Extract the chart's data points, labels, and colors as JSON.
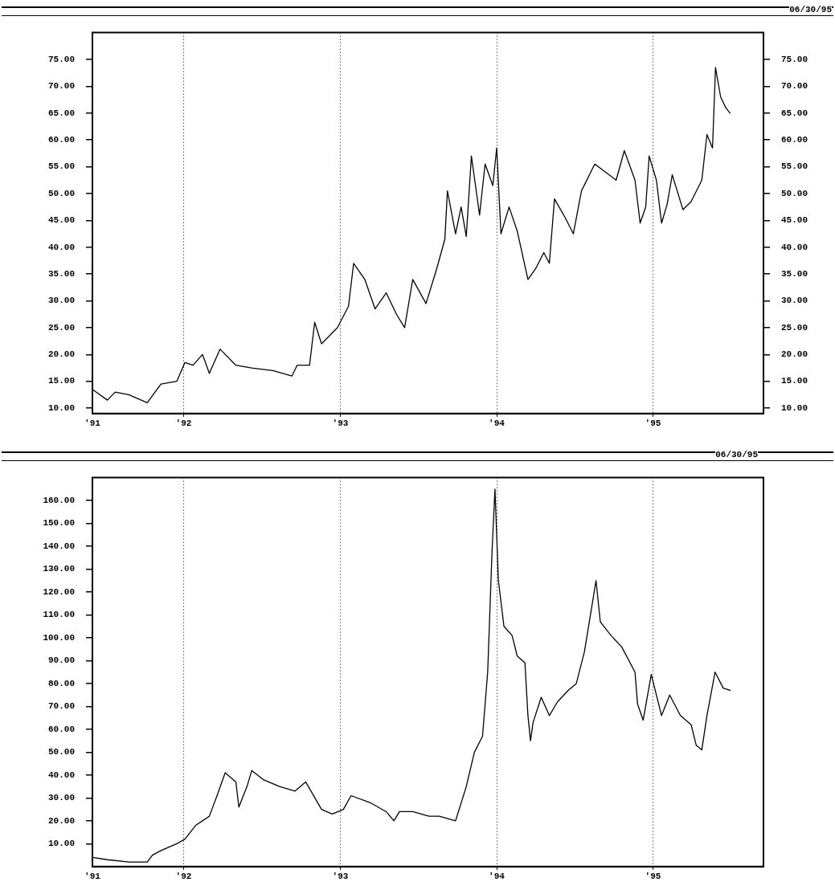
{
  "chart_data": [
    {
      "type": "line",
      "subtitle": "06/30/95",
      "xlim": [
        "1991-06-02",
        "1995-09-16"
      ],
      "ylim": [
        9,
        80
      ],
      "xticks": [
        {
          "value": "1991-06-02",
          "label": "'91"
        },
        {
          "value": "1992-01-01",
          "label": "'92"
        },
        {
          "value": "1993-01-01",
          "label": "'93"
        },
        {
          "value": "1994-01-01",
          "label": "'94"
        },
        {
          "value": "1995-01-01",
          "label": "'95"
        }
      ],
      "yticks": [
        {
          "value": 10,
          "label": "10.00"
        },
        {
          "value": 15,
          "label": "15.00"
        },
        {
          "value": 20,
          "label": "20.00"
        },
        {
          "value": 25,
          "label": "25.00"
        },
        {
          "value": 30,
          "label": "30.00"
        },
        {
          "value": 35,
          "label": "35.00"
        },
        {
          "value": 40,
          "label": "40.00"
        },
        {
          "value": 45,
          "label": "45.00"
        },
        {
          "value": 50,
          "label": "50.00"
        },
        {
          "value": 55,
          "label": "55.00"
        },
        {
          "value": 60,
          "label": "60.00"
        },
        {
          "value": 65,
          "label": "65.00"
        },
        {
          "value": 70,
          "label": "70.00"
        },
        {
          "value": 75,
          "label": "75.00"
        }
      ],
      "y2lim": [
        9,
        80
      ],
      "y2ticks": [
        {
          "value": 10,
          "label": "10.00"
        },
        {
          "value": 15,
          "label": "15.00"
        },
        {
          "value": 20,
          "label": "20.00"
        },
        {
          "value": 25,
          "label": "25.00"
        },
        {
          "value": 30,
          "label": "30.00"
        },
        {
          "value": 35,
          "label": "35.00"
        },
        {
          "value": 40,
          "label": "40.00"
        },
        {
          "value": 45,
          "label": "45.00"
        },
        {
          "value": 50,
          "label": "50.00"
        },
        {
          "value": 55,
          "label": "55.00"
        },
        {
          "value": 60,
          "label": "60.00"
        },
        {
          "value": 65,
          "label": "65.00"
        },
        {
          "value": 70,
          "label": "70.00"
        },
        {
          "value": 75,
          "label": "75.00"
        }
      ],
      "grid": "x",
      "marker": "none",
      "x": [
        "1991-06-02",
        "1991-07-07",
        "1991-07-25",
        "1991-08-26",
        "1991-10-08",
        "1991-11-09",
        "1991-12-16",
        "1992-01-04",
        "1992-01-23",
        "1992-02-14",
        "1992-03-01",
        "1992-03-26",
        "1992-05-02",
        "1992-06-08",
        "1992-07-28",
        "1992-09-10",
        "1992-09-22",
        "1992-10-21",
        "1992-11-02",
        "1992-11-18",
        "1992-12-25",
        "1993-01-20",
        "1993-02-01",
        "1993-02-27",
        "1993-03-23",
        "1993-04-18",
        "1993-05-12",
        "1993-05-31",
        "1993-06-19",
        "1993-07-20",
        "1993-08-14",
        "1993-09-02",
        "1993-09-08",
        "1993-09-27",
        "1993-10-10",
        "1993-10-22",
        "1993-11-03",
        "1993-11-22",
        "1993-12-05",
        "1993-12-23",
        "1994-01-01",
        "1994-01-11",
        "1994-01-30",
        "1994-02-18",
        "1994-03-15",
        "1994-04-02",
        "1994-04-21",
        "1994-05-04",
        "1994-05-16",
        "1994-06-10",
        "1994-06-29",
        "1994-07-18",
        "1994-08-18",
        "1994-09-12",
        "1994-10-07",
        "1994-10-26",
        "1994-11-20",
        "1994-12-02",
        "1994-12-15",
        "1994-12-23",
        "1995-01-09",
        "1995-01-21",
        "1995-02-03",
        "1995-02-15",
        "1995-03-12",
        "1995-03-31",
        "1995-04-25",
        "1995-05-07",
        "1995-05-20",
        "1995-05-27",
        "1995-06-08",
        "1995-06-20",
        "1995-06-30"
      ],
      "series": [
        {
          "color": "#000000",
          "values": [
            13.5,
            11.5,
            13,
            12.5,
            11,
            14.5,
            15,
            18.5,
            18,
            20,
            16.5,
            21,
            18,
            17.5,
            17,
            16,
            18,
            18,
            26,
            22,
            25,
            29,
            37,
            34,
            28.5,
            31.5,
            27.5,
            25,
            34,
            29.5,
            36,
            41.5,
            50.5,
            42.5,
            47.5,
            42,
            57,
            46,
            55.5,
            51.5,
            58.5,
            42.5,
            47.5,
            43,
            34,
            36,
            39,
            37,
            49,
            45.5,
            42.5,
            50.5,
            55.5,
            54,
            52.5,
            58,
            52.5,
            44.5,
            47.5,
            57,
            52.5,
            44.5,
            48,
            53.5,
            47,
            48.5,
            52.5,
            61,
            58.5,
            73.5,
            68,
            66,
            65
          ]
        }
      ]
    },
    {
      "type": "line",
      "subtitle": "06/30/95",
      "xlim": [
        "1991-06-02",
        "1995-09-16"
      ],
      "ylim": [
        0,
        170
      ],
      "xticks": [
        {
          "value": "1991-06-02",
          "label": "'91"
        },
        {
          "value": "1992-01-01",
          "label": "'92"
        },
        {
          "value": "1993-01-01",
          "label": "'93"
        },
        {
          "value": "1994-01-01",
          "label": "'94"
        },
        {
          "value": "1995-01-01",
          "label": "'95"
        }
      ],
      "yticks": [
        {
          "value": 10,
          "label": "10.00"
        },
        {
          "value": 20,
          "label": "20.00"
        },
        {
          "value": 30,
          "label": "30.00"
        },
        {
          "value": 40,
          "label": "40.00"
        },
        {
          "value": 50,
          "label": "50.00"
        },
        {
          "value": 60,
          "label": "60.00"
        },
        {
          "value": 70,
          "label": "70.00"
        },
        {
          "value": 80,
          "label": "80.00"
        },
        {
          "value": 90,
          "label": "90.00"
        },
        {
          "value": 100,
          "label": "100.00"
        },
        {
          "value": 110,
          "label": "110.00"
        },
        {
          "value": 120,
          "label": "120.00"
        },
        {
          "value": 130,
          "label": "130.00"
        },
        {
          "value": 140,
          "label": "140.00"
        },
        {
          "value": 150,
          "label": "150.00"
        },
        {
          "value": 160,
          "label": "160.00"
        }
      ],
      "grid": "x",
      "marker": "none",
      "x": [
        "1991-06-02",
        "1991-07-07",
        "1991-08-26",
        "1991-10-08",
        "1991-10-20",
        "1991-11-09",
        "1991-12-16",
        "1992-01-04",
        "1992-01-29",
        "1992-03-01",
        "1992-03-19",
        "1992-04-07",
        "1992-05-02",
        "1992-05-09",
        "1992-05-28",
        "1992-06-08",
        "1992-07-05",
        "1992-08-12",
        "1992-09-17",
        "1992-10-12",
        "1992-11-18",
        "1992-12-13",
        "1993-01-08",
        "1993-01-26",
        "1993-03-11",
        "1993-04-18",
        "1993-05-06",
        "1993-05-19",
        "1993-06-19",
        "1993-07-27",
        "1993-08-20",
        "1993-09-27",
        "1993-10-22",
        "1993-11-10",
        "1993-11-29",
        "1993-12-11",
        "1993-12-21",
        "1993-12-28",
        "1994-01-05",
        "1994-01-18",
        "1994-02-06",
        "1994-02-18",
        "1994-03-08",
        "1994-03-15",
        "1994-03-21",
        "1994-03-27",
        "1994-04-15",
        "1994-05-04",
        "1994-05-23",
        "1994-06-17",
        "1994-07-06",
        "1994-07-25",
        "1994-08-21",
        "1994-08-31",
        "1994-09-25",
        "1994-10-20",
        "1994-11-20",
        "1994-11-26",
        "1994-12-09",
        "1994-12-28",
        "1995-01-21",
        "1995-02-09",
        "1995-03-06",
        "1995-03-31",
        "1995-04-12",
        "1995-04-25",
        "1995-05-07",
        "1995-05-26",
        "1995-06-14",
        "1995-06-30"
      ],
      "series": [
        {
          "color": "#000000",
          "values": [
            4,
            3,
            2,
            2,
            5,
            7,
            10,
            12,
            18,
            22,
            31,
            41,
            37,
            26,
            35,
            42,
            38,
            35,
            33,
            37,
            25,
            23,
            25,
            31,
            28,
            24,
            20,
            24,
            24,
            22,
            22,
            20,
            35,
            50,
            57,
            85,
            137,
            165,
            125,
            105,
            101,
            92,
            89,
            66,
            55,
            63,
            74,
            66,
            72,
            77,
            80,
            94,
            125,
            107,
            101,
            96,
            85,
            71,
            64,
            84,
            66,
            75,
            66,
            62,
            53,
            51,
            66,
            85,
            78,
            77
          ]
        }
      ]
    }
  ]
}
